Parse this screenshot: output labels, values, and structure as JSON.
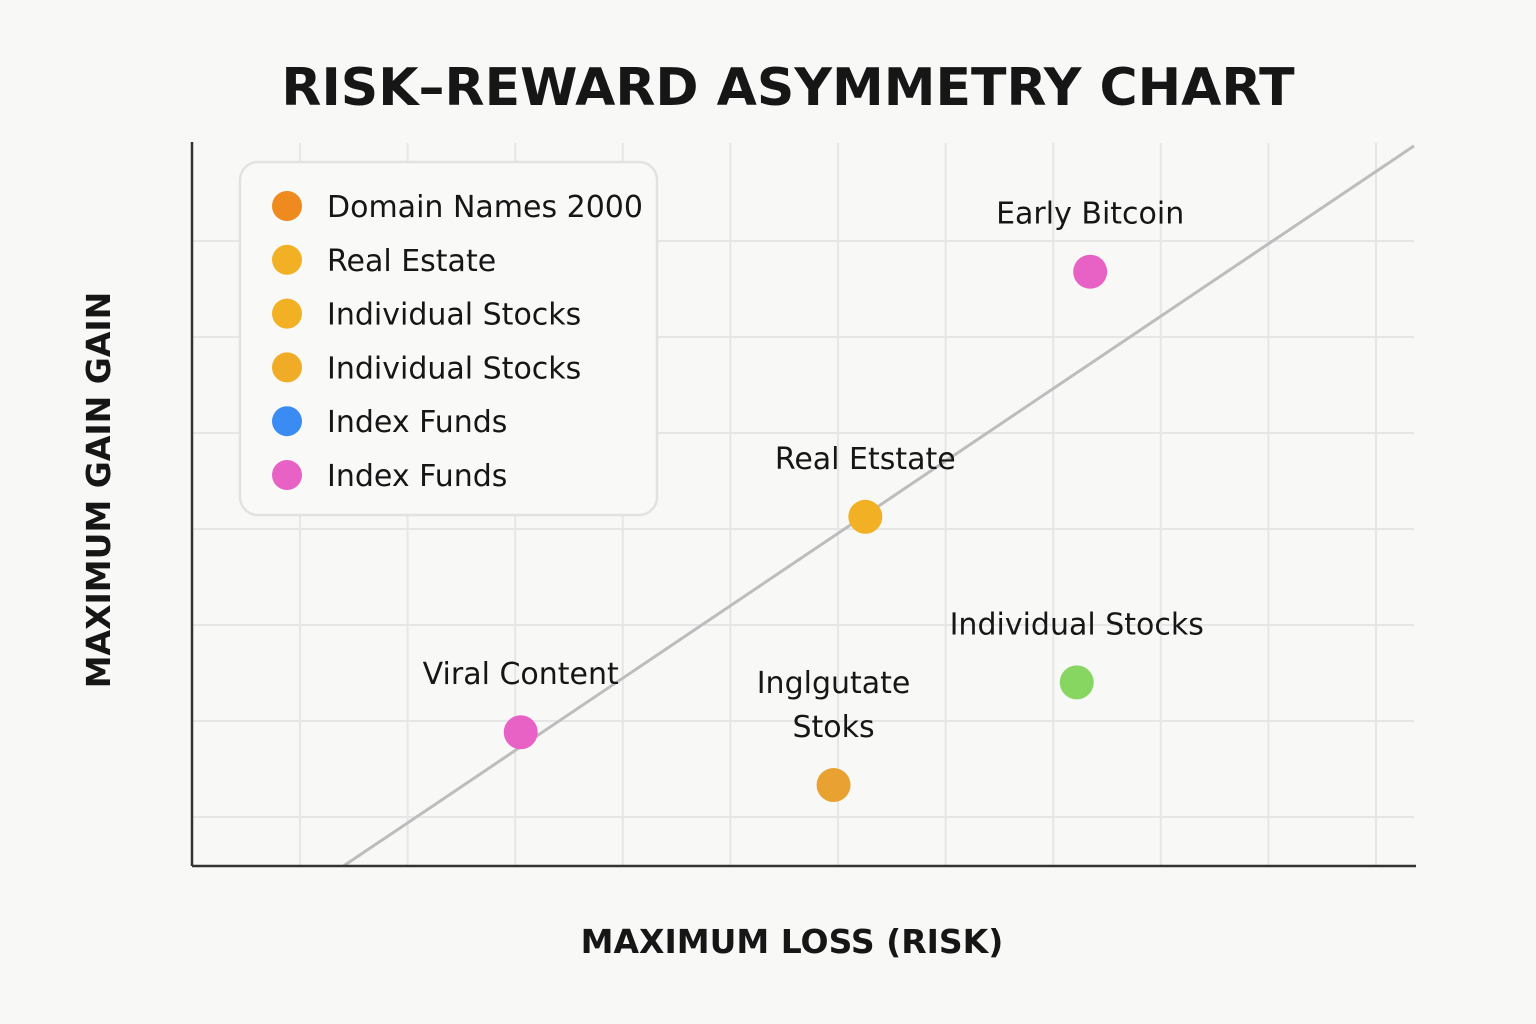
{
  "chart_data": {
    "type": "scatter",
    "title": "RISK–REWARD ASYMMETRY CHART",
    "xlabel": "MAXIMUM LOSS (RISK)",
    "ylabel": "MAXIMUM GAIN GAIN",
    "xlim": [
      0,
      100
    ],
    "ylim": [
      0,
      100
    ],
    "grid": true,
    "legend_placement": "top-left",
    "legend": [
      {
        "label": "Domain Names 2000",
        "color": "#ef8a1e"
      },
      {
        "label": "Real Estate",
        "color": "#f2b024"
      },
      {
        "label": "Individual Stocks",
        "color": "#f2b024"
      },
      {
        "label": "Individual Stocks",
        "color": "#f0ac26"
      },
      {
        "label": "Index Funds",
        "color": "#3a8cf2"
      },
      {
        "label": "Index Funds",
        "color": "#e862c6"
      }
    ],
    "points": [
      {
        "label": "Early Bitcoin",
        "x": 73.5,
        "y": 82.2,
        "color": "#e862c6"
      },
      {
        "label": "Real Etstate",
        "x": 55.1,
        "y": 48.3,
        "color": "#f2b024"
      },
      {
        "label": "Individual Stocks",
        "x": 72.4,
        "y": 25.4,
        "color": "#88d662"
      },
      {
        "label": "Inglgutate\nStoks",
        "x": 52.5,
        "y": 11.2,
        "color": "#e9a232"
      },
      {
        "label": "Viral Content",
        "x": 26.9,
        "y": 18.5,
        "color": "#e862c6"
      }
    ],
    "reference_line": {
      "x": [
        12.4,
        100
      ],
      "y": [
        0,
        99.6
      ],
      "color": "#bdbdbd"
    }
  }
}
